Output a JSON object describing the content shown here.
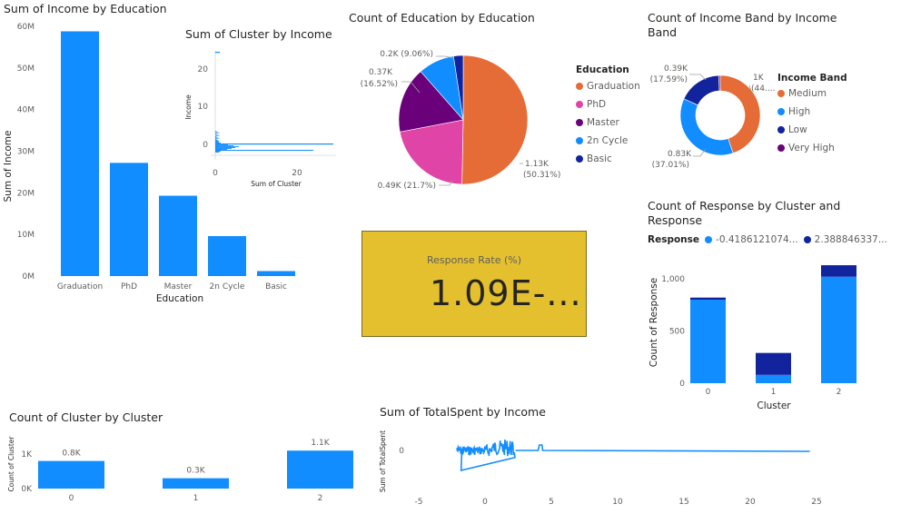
{
  "colors": {
    "primary": "#118dff",
    "dark_blue": "#12239e",
    "orange": "#e66c37",
    "magenta": "#e044a7",
    "purple": "#6b007b",
    "card_bg": "#e4c02f"
  },
  "income_by_education": {
    "title": "Sum of Income by Education",
    "chart_data": {
      "type": "bar",
      "categories": [
        "Graduation",
        "PhD",
        "Master",
        "2n Cycle",
        "Basic"
      ],
      "values": [
        58.8,
        27.2,
        19.3,
        9.6,
        1.2
      ],
      "tick_labels": [
        "0M",
        "10M",
        "20M",
        "30M",
        "40M",
        "50M",
        "60M"
      ],
      "ylim": [
        0,
        60
      ],
      "xlabel": "Education",
      "ylabel": "Sum of Income"
    }
  },
  "cluster_by_income": {
    "title": "Sum of Cluster by Income",
    "chart_data": {
      "type": "bar",
      "orientation": "horizontal",
      "y_ticks": [
        "20",
        "10",
        "0"
      ],
      "x_ticks": [
        "0",
        "20"
      ],
      "xlabel": "Sum of Cluster",
      "ylabel": "Income"
    }
  },
  "education_pie": {
    "title": "Count of Education by Education",
    "legend_title": "Education",
    "chart_data": {
      "type": "pie",
      "categories": [
        "Graduation",
        "PhD",
        "Master",
        "2n Cycle",
        "Basic"
      ],
      "values": [
        50.31,
        21.7,
        16.52,
        9.06,
        2.41
      ],
      "colors": [
        "#e66c37",
        "#e044a7",
        "#6b007b",
        "#118dff",
        "#12239e"
      ]
    },
    "labels": {
      "graduation": [
        "1.13K",
        "(50.31%)"
      ],
      "phd": "0.49K (21.7%)",
      "master": [
        "0.37K",
        "(16.52%)"
      ],
      "cycle": "0.2K (9.06%)"
    }
  },
  "income_band_donut": {
    "title_line1": "Count of Income Band by Income",
    "title_line2": "Band",
    "legend_title": "Income Band",
    "chart_data": {
      "type": "pie",
      "donut": true,
      "categories": [
        "Medium",
        "High",
        "Low",
        "Very High"
      ],
      "values": [
        44.8,
        37.01,
        17.59,
        0.6
      ],
      "colors": [
        "#e66c37",
        "#118dff",
        "#12239e",
        "#6b007b"
      ]
    },
    "labels": {
      "medium": [
        "1K",
        "(44...."
      ],
      "high": [
        "0.83K",
        "(37.01%)"
      ],
      "low": [
        "0.39K",
        "(17.59%)"
      ]
    }
  },
  "response_card": {
    "label": "Response Rate (%)",
    "value": "1.09E-..."
  },
  "response_by_cluster": {
    "title_line1": "Count of Response by Cluster and",
    "title_line2": "Response",
    "legend_title": "Response",
    "legend_items": [
      "-0.4186121074...",
      "2.388846337..."
    ],
    "chart_data": {
      "type": "bar",
      "stacked": true,
      "categories": [
        "0",
        "1",
        "2"
      ],
      "series": [
        {
          "name": "-0.4186121074...",
          "values": [
            800,
            80,
            1020
          ]
        },
        {
          "name": "2.388846337...",
          "values": [
            20,
            210,
            110
          ]
        }
      ],
      "tick_labels": [
        "0",
        "500",
        "1,000"
      ],
      "ylim": [
        0,
        1150
      ],
      "xlabel": "Cluster",
      "ylabel": "Count of Response"
    }
  },
  "cluster_count": {
    "title": "Count of Cluster by Cluster",
    "chart_data": {
      "type": "bar",
      "categories": [
        "0",
        "1",
        "2"
      ],
      "values": [
        0.8,
        0.3,
        1.1
      ],
      "data_labels": [
        "0.8K",
        "0.3K",
        "1.1K"
      ],
      "tick_labels": [
        "0K",
        "1K"
      ],
      "ylim": [
        0,
        1.1
      ],
      "ylabel": "Count of Cluster"
    }
  },
  "totalspent_by_income": {
    "title": "Sum of TotalSpent by Income",
    "chart_data": {
      "type": "line",
      "x_ticks": [
        "-5",
        "0",
        "5",
        "10",
        "15",
        "20",
        "25"
      ],
      "y_ticks": [
        "0"
      ],
      "xlim": [
        -5.5,
        25.5
      ],
      "ylabel": "Sum of TotalSpent"
    }
  }
}
